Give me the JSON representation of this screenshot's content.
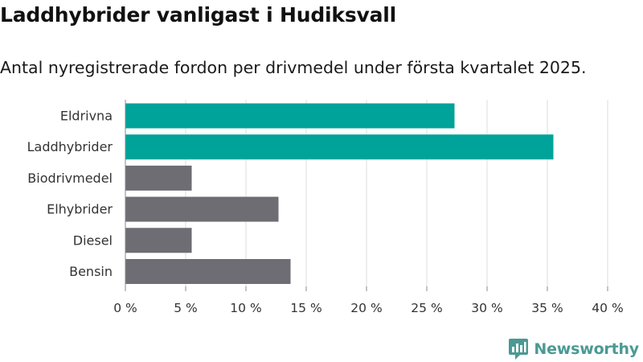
{
  "title": "Laddhybrider vanligast i Hudiksvall",
  "subtitle": "Antal nyregistrerade fordon per drivmedel under första kvartalet 2025.",
  "brand": {
    "name": "Newsworthy",
    "icon": "newsworthy-logo-icon"
  },
  "colors": {
    "highlight": "#00a399",
    "default": "#6e6d73",
    "grid": "#dddddd",
    "axis": "#888888"
  },
  "chart_data": {
    "type": "bar",
    "orientation": "horizontal",
    "categories": [
      "Eldrivna",
      "Laddhybrider",
      "Biodrivmedel",
      "Elhybrider",
      "Diesel",
      "Bensin"
    ],
    "values": [
      27.3,
      35.5,
      5.5,
      12.7,
      5.5,
      13.7
    ],
    "highlighted": [
      true,
      true,
      false,
      false,
      false,
      false
    ],
    "xlim": [
      0,
      40
    ],
    "xticks": [
      0,
      5,
      10,
      15,
      20,
      25,
      30,
      35,
      40
    ],
    "xtick_labels": [
      "0 %",
      "5 %",
      "10 %",
      "15 %",
      "20 %",
      "25 %",
      "30 %",
      "35 %",
      "40 %"
    ],
    "grid": "vertical"
  }
}
